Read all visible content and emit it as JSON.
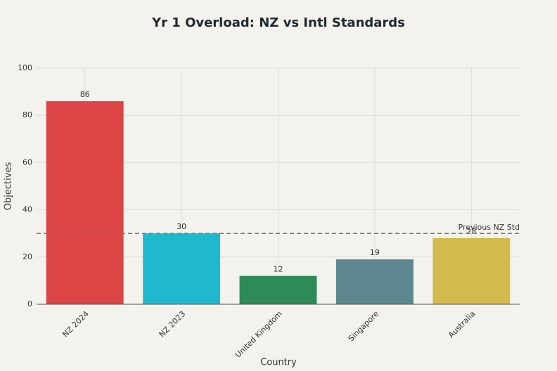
{
  "chart_data": {
    "type": "bar",
    "title": "Yr 1 Overload: NZ vs Intl Standards",
    "x_label": "Country",
    "y_label": "Objectives",
    "categories": [
      "NZ 2024",
      "NZ 2023",
      "United Kingdom",
      "Singapore",
      "Australia"
    ],
    "values": [
      86,
      30,
      12,
      19,
      28
    ],
    "colors": [
      "#db4545",
      "#1fb8cd",
      "#2e8b57",
      "#5d878f",
      "#d2ba4c"
    ],
    "ylim": [
      0,
      100
    ],
    "yticks": [
      0,
      20,
      40,
      60,
      80,
      100
    ],
    "grid": true,
    "reference_line": {
      "value": 30,
      "label": "Previous NZ Std"
    }
  }
}
